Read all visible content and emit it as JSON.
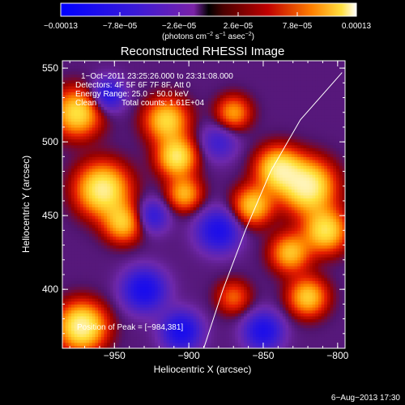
{
  "chart_data": {
    "type": "heatmap",
    "title": "Reconstructed RHESSI Image",
    "xlabel": "Heliocentric X (arcsec)",
    "ylabel": "Heliocentric Y (arcsec)",
    "xlim": [
      -985,
      -795
    ],
    "ylim": [
      360,
      555
    ],
    "xticks": [
      -950,
      -900,
      -850,
      -800
    ],
    "xtick_labels": [
      "−950",
      "−900",
      "−850",
      "−800"
    ],
    "yticks": [
      400,
      450,
      500,
      550
    ],
    "ytick_labels": [
      "400",
      "450",
      "500",
      "550"
    ],
    "colorbar": {
      "tick_labels": [
        "−0.00013",
        "−7.8e−05",
        "−2.6e−05",
        "2.6e−05",
        "7.8e−05",
        "0.00013"
      ],
      "units_prefix": "(photons cm",
      "units_mid1": " s",
      "units_mid2": " asec",
      "units_suffix": ")",
      "units_sup1": "−2",
      "units_sup2": "−1",
      "units_sup3": "−2",
      "range": [
        -0.00013,
        0.00013
      ]
    },
    "annotations": {
      "time_range": "1−Oct−2011 23:25:26.000 to 23:31:08.000",
      "detectors": "Detectors: 4F 5F 6F 7F 8F, Att 0",
      "energy": "Energy Range: 25.0 − 50.0 keV",
      "method": "Clean",
      "counts": "Total counts: 1.61E+04",
      "peak": "Position of Peak = [−984,381]"
    },
    "solar_limb": [
      [
        -890,
        360
      ],
      [
        -877,
        400
      ],
      [
        -862,
        440
      ],
      [
        -845,
        480
      ],
      [
        -825,
        515
      ],
      [
        -797,
        547
      ]
    ],
    "sources": [
      {
        "x": -975,
        "y": 520,
        "amp": 1.6,
        "w": 11
      },
      {
        "x": -958,
        "y": 468,
        "amp": 1.9,
        "w": 12
      },
      {
        "x": -944,
        "y": 445,
        "amp": 1.3,
        "w": 9
      },
      {
        "x": -972,
        "y": 375,
        "amp": 2.0,
        "w": 11
      },
      {
        "x": -915,
        "y": 515,
        "amp": 1.5,
        "w": 10
      },
      {
        "x": -908,
        "y": 490,
        "amp": 1.7,
        "w": 9
      },
      {
        "x": -903,
        "y": 465,
        "amp": 1.2,
        "w": 8
      },
      {
        "x": -870,
        "y": 520,
        "amp": 1.1,
        "w": 8
      },
      {
        "x": -857,
        "y": 457,
        "amp": 1.4,
        "w": 9
      },
      {
        "x": -840,
        "y": 482,
        "amp": 1.7,
        "w": 10
      },
      {
        "x": -820,
        "y": 470,
        "amp": 2.0,
        "w": 12
      },
      {
        "x": -808,
        "y": 440,
        "amp": 1.6,
        "w": 10
      },
      {
        "x": -832,
        "y": 425,
        "amp": 1.3,
        "w": 9
      },
      {
        "x": -820,
        "y": 395,
        "amp": 1.4,
        "w": 9
      },
      {
        "x": -870,
        "y": 395,
        "amp": 0.8,
        "w": 8
      },
      {
        "x": -930,
        "y": 400,
        "amp": -1.2,
        "w": 10
      },
      {
        "x": -955,
        "y": 532,
        "amp": -1.0,
        "w": 8
      },
      {
        "x": -880,
        "y": 440,
        "amp": -1.1,
        "w": 10
      },
      {
        "x": -925,
        "y": 450,
        "amp": -0.8,
        "w": 8
      },
      {
        "x": -850,
        "y": 372,
        "amp": -1.1,
        "w": 9
      },
      {
        "x": -905,
        "y": 372,
        "amp": -1.2,
        "w": 9
      },
      {
        "x": -880,
        "y": 500,
        "amp": -0.6,
        "w": 9
      }
    ]
  },
  "footer": {
    "date": "6−Aug−2013 17:30"
  }
}
